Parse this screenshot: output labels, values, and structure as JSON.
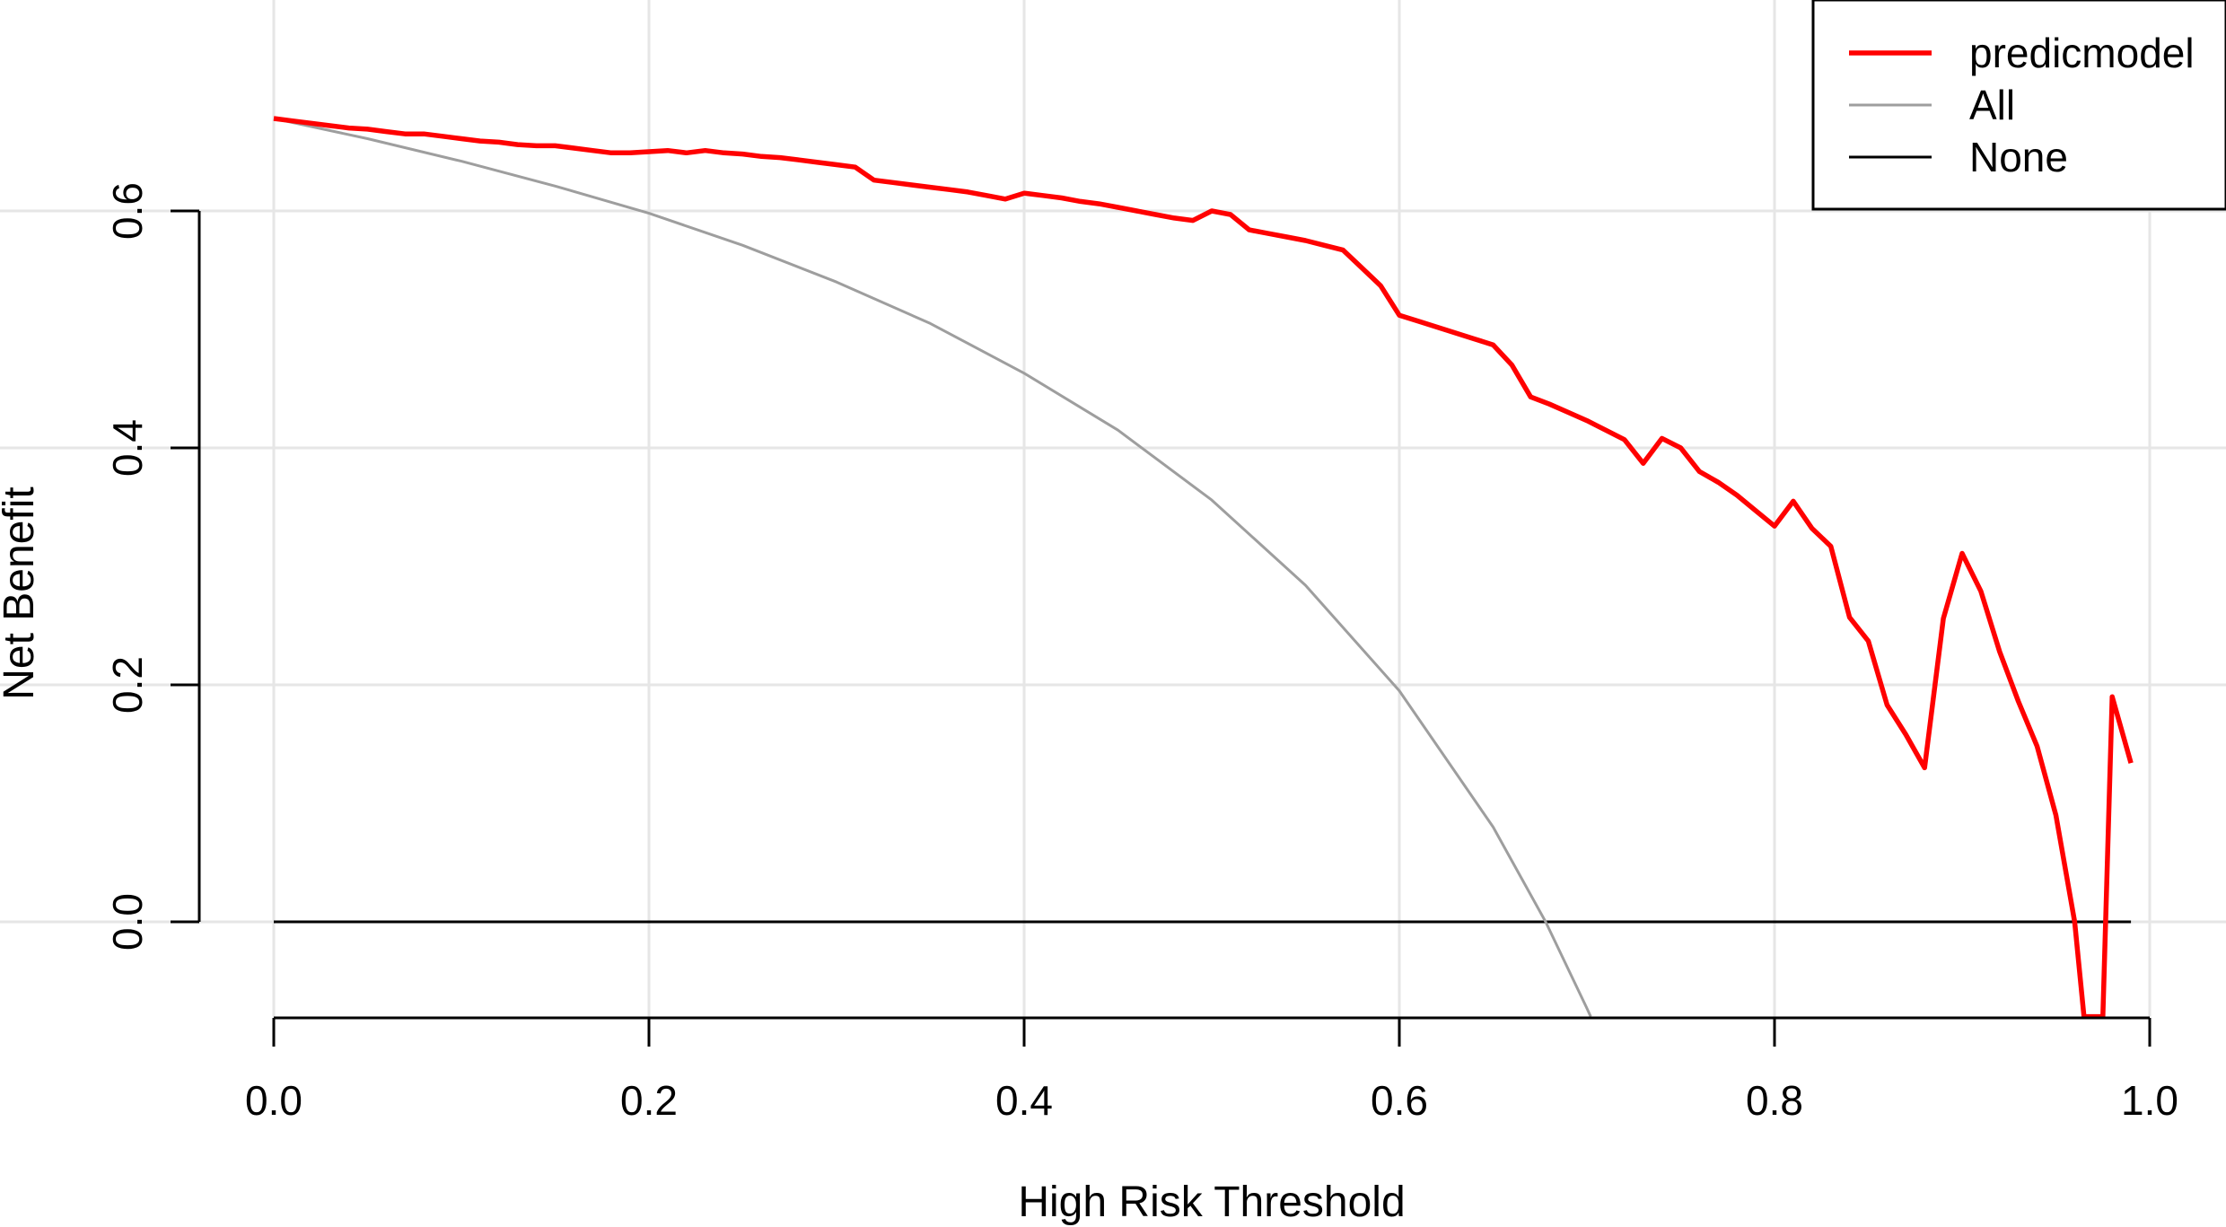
{
  "chart_data": {
    "type": "line",
    "xlabel": "High Risk Threshold",
    "ylabel": "Net Benefit",
    "xlim": [
      0,
      1
    ],
    "ylim": [
      -0.08,
      0.68
    ],
    "x_ticks": [
      {
        "value": 0.0,
        "label": "0.0"
      },
      {
        "value": 0.2,
        "label": "0.2"
      },
      {
        "value": 0.4,
        "label": "0.4"
      },
      {
        "value": 0.6,
        "label": "0.6"
      },
      {
        "value": 0.8,
        "label": "0.8"
      },
      {
        "value": 1.0,
        "label": "1.0"
      }
    ],
    "y_ticks": [
      {
        "value": 0.0,
        "label": "0.0"
      },
      {
        "value": 0.2,
        "label": "0.2"
      },
      {
        "value": 0.4,
        "label": "0.4"
      },
      {
        "value": 0.6,
        "label": "0.6"
      }
    ],
    "grid": true,
    "legend_position": "top-right",
    "colors": {
      "predicmodel": "#ff0000",
      "All": "#9e9e9e",
      "None": "#000000",
      "grid": "#e6e6e6"
    },
    "series": [
      {
        "name": "predicmodel",
        "color": "#ff0000",
        "x": [
          0.0,
          0.01,
          0.02,
          0.03,
          0.04,
          0.05,
          0.06,
          0.07,
          0.08,
          0.09,
          0.1,
          0.11,
          0.12,
          0.13,
          0.14,
          0.15,
          0.16,
          0.17,
          0.18,
          0.19,
          0.2,
          0.21,
          0.22,
          0.23,
          0.24,
          0.25,
          0.26,
          0.27,
          0.28,
          0.29,
          0.3,
          0.31,
          0.32,
          0.33,
          0.34,
          0.35,
          0.36,
          0.37,
          0.38,
          0.39,
          0.4,
          0.41,
          0.42,
          0.43,
          0.44,
          0.45,
          0.46,
          0.47,
          0.48,
          0.49,
          0.5,
          0.51,
          0.52,
          0.53,
          0.54,
          0.55,
          0.56,
          0.57,
          0.58,
          0.59,
          0.6,
          0.61,
          0.62,
          0.63,
          0.64,
          0.65,
          0.66,
          0.67,
          0.68,
          0.69,
          0.7,
          0.71,
          0.72,
          0.73,
          0.74,
          0.75,
          0.76,
          0.77,
          0.78,
          0.79,
          0.8,
          0.81,
          0.82,
          0.83,
          0.84,
          0.85,
          0.86,
          0.87,
          0.88,
          0.89,
          0.9,
          0.91,
          0.92,
          0.93,
          0.94,
          0.95,
          0.96,
          0.965,
          0.97,
          0.975,
          0.98,
          0.99
        ],
        "y": [
          0.678,
          0.676,
          0.674,
          0.672,
          0.67,
          0.669,
          0.667,
          0.665,
          0.665,
          0.663,
          0.661,
          0.659,
          0.658,
          0.656,
          0.655,
          0.655,
          0.653,
          0.651,
          0.649,
          0.649,
          0.65,
          0.651,
          0.649,
          0.651,
          0.649,
          0.648,
          0.646,
          0.645,
          0.643,
          0.641,
          0.639,
          0.637,
          0.626,
          0.624,
          0.622,
          0.62,
          0.618,
          0.616,
          0.613,
          0.61,
          0.615,
          0.613,
          0.611,
          0.608,
          0.606,
          0.603,
          0.6,
          0.597,
          0.594,
          0.592,
          0.6,
          0.597,
          0.584,
          0.581,
          0.578,
          0.575,
          0.571,
          0.567,
          0.552,
          0.537,
          0.512,
          0.507,
          0.502,
          0.497,
          0.492,
          0.487,
          0.47,
          0.443,
          0.437,
          0.43,
          0.423,
          0.415,
          0.407,
          0.387,
          0.408,
          0.4,
          0.38,
          0.371,
          0.36,
          0.347,
          0.334,
          0.355,
          0.332,
          0.317,
          0.257,
          0.237,
          0.183,
          0.158,
          0.13,
          0.256,
          0.311,
          0.279,
          0.228,
          0.186,
          0.148,
          0.09,
          0.0,
          -0.08,
          -0.08,
          -0.08,
          0.19,
          0.134
        ]
      },
      {
        "name": "All",
        "color": "#9e9e9e",
        "prevalence": 0.678,
        "x": [
          0.0,
          0.05,
          0.1,
          0.15,
          0.2,
          0.25,
          0.3,
          0.35,
          0.4,
          0.45,
          0.5,
          0.55,
          0.6,
          0.65,
          0.678,
          0.7,
          0.702
        ],
        "y": [
          0.678,
          0.661,
          0.642,
          0.621,
          0.598,
          0.571,
          0.54,
          0.505,
          0.463,
          0.415,
          0.356,
          0.284,
          0.195,
          0.08,
          0.0,
          -0.073,
          -0.08
        ]
      },
      {
        "name": "None",
        "color": "#000000",
        "x": [
          0.0,
          0.99
        ],
        "y": [
          0.0,
          0.0
        ]
      }
    ]
  }
}
